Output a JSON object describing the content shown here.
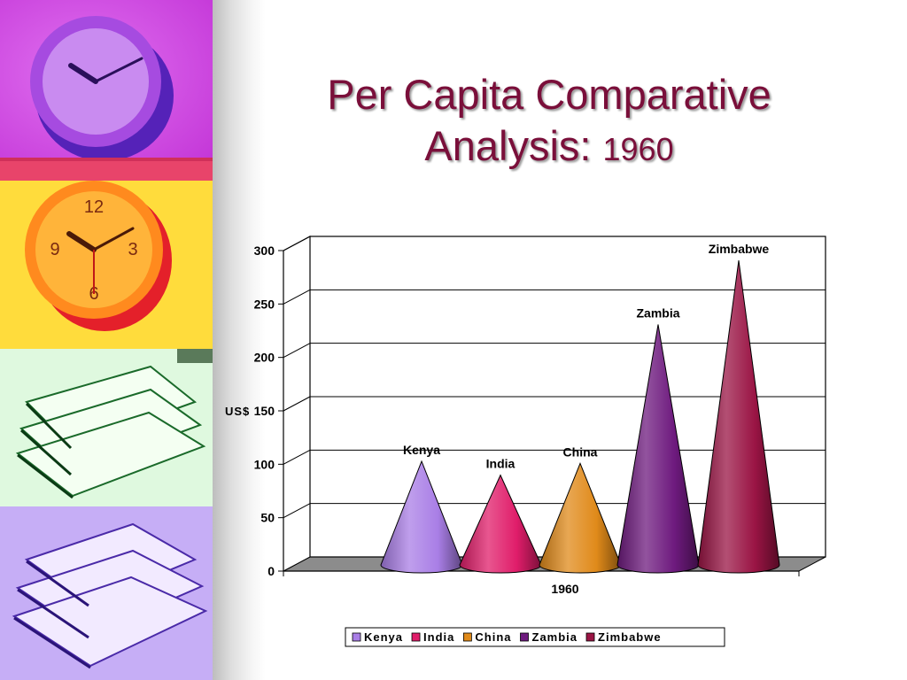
{
  "slide": {
    "title_line1": "Per Capita Comparative",
    "title_line2": "Analysis: ",
    "title_year": "1960",
    "title_color": "#7a0f3a"
  },
  "decorations": [
    "purple-clock-image",
    "yellow-clock-image",
    "green-books-image",
    "purple-books-image"
  ],
  "chart_data": {
    "type": "bar",
    "bar_shape": "cone",
    "three_d": true,
    "categories": [
      "1960"
    ],
    "series": [
      {
        "name": "Kenya",
        "values": [
          97
        ],
        "color": "#a97ee6"
      },
      {
        "name": "India",
        "values": [
          84
        ],
        "color": "#e01d6a"
      },
      {
        "name": "China",
        "values": [
          95
        ],
        "color": "#e08a1a"
      },
      {
        "name": "Zambia",
        "values": [
          225
        ],
        "color": "#6e1a7e"
      },
      {
        "name": "Zimbabwe",
        "values": [
          285
        ],
        "color": "#9a1444"
      }
    ],
    "ylabel": "US$",
    "ylim": [
      0,
      300
    ],
    "yticks": [
      "0",
      "50",
      "100",
      "150",
      "200",
      "250",
      "300"
    ],
    "grid": true,
    "data_labels": "series name",
    "legend_position": "bottom",
    "title": ""
  }
}
